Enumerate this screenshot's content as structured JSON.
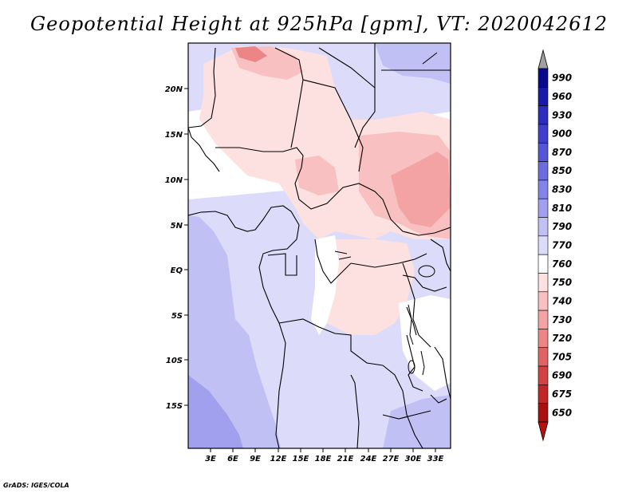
{
  "title": "Geopotential Height at 925hPa [gpm], VT: 2020042612",
  "credit": "GrADS: IGES/COLA",
  "map": {
    "lat_labels": [
      "20N",
      "15N",
      "10N",
      "5N",
      "EQ",
      "5S",
      "10S",
      "15S"
    ],
    "lon_labels": [
      "3E",
      "6E",
      "9E",
      "12E",
      "15E",
      "18E",
      "21E",
      "24E",
      "27E",
      "30E",
      "33E"
    ]
  },
  "colorbar": {
    "labels": [
      "990",
      "960",
      "930",
      "900",
      "870",
      "850",
      "830",
      "810",
      "790",
      "770",
      "760",
      "750",
      "740",
      "730",
      "720",
      "705",
      "690",
      "675",
      "650"
    ],
    "colors": [
      "#0a0a8c",
      "#1a1aa8",
      "#2d2dbd",
      "#3f3fcc",
      "#5555d8",
      "#6c6ce0",
      "#8484e8",
      "#a0a0ef",
      "#c0c0f5",
      "#dcdcfa",
      "#ffffff",
      "#fde0e0",
      "#f8c0c0",
      "#f3a3a3",
      "#ec8585",
      "#e06464",
      "#d24242",
      "#c02626",
      "#a81010"
    ],
    "over_color": "#a0a0a0",
    "under_color": "#b81010"
  }
}
